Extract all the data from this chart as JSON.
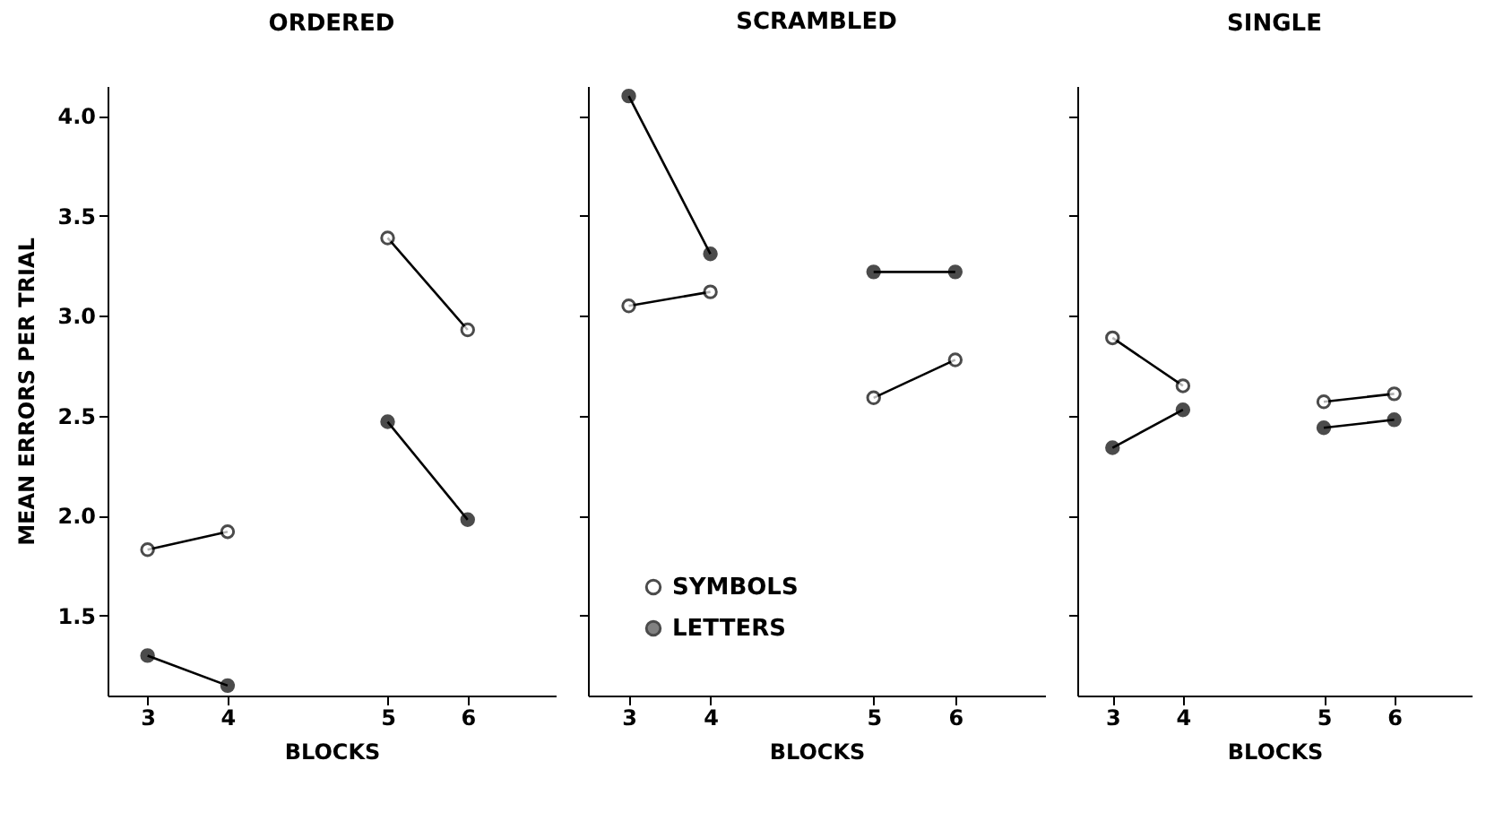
{
  "chart_data": [
    {
      "type": "line",
      "title": "ORDERED",
      "xlabel": "BLOCKS",
      "ylabel": "MEAN ERRORS PER TRIAL",
      "categories": [
        "3",
        "4",
        null,
        "5",
        "6"
      ],
      "ylim": [
        1.1,
        4.15
      ],
      "yticks": [
        1.5,
        {
          "value": 2,
          "label": "2.0"
        },
        2.5,
        {
          "value": 3,
          "label": "3.0"
        },
        3.5,
        {
          "value": 4,
          "label": "4.0"
        }
      ],
      "marker": "circle",
      "grid": false,
      "series": [
        {
          "color": "#000000",
          "values": [
            1.83,
            1.92,
            null,
            3.39,
            2.93
          ]
        },
        {
          "color": "#000000",
          "values": [
            1.3,
            1.15,
            null,
            2.47,
            1.98
          ]
        }
      ]
    },
    {
      "type": "line",
      "title": "SCRAMBLED",
      "xlabel": "BLOCKS",
      "categories": [
        "3",
        "4",
        null,
        "5",
        "6"
      ],
      "ylim": [
        1.1,
        4.15
      ],
      "yticks": [
        1.5,
        2,
        2.5,
        3,
        3.5,
        4
      ],
      "tick_labels": "x",
      "marker": "circle",
      "grid": false,
      "legend": "bottom left",
      "series": [
        {
          "name": "SYMBOLS",
          "color": "#000000",
          "values": [
            3.05,
            3.12,
            null,
            2.59,
            2.78
          ]
        },
        {
          "name": "LETTERS",
          "color": "#000000",
          "values": [
            4.1,
            3.31,
            null,
            3.22,
            3.22
          ]
        }
      ]
    },
    {
      "type": "line",
      "title": "SINGLE",
      "xlabel": "BLOCKS",
      "categories": [
        "3",
        "4",
        null,
        "5",
        "6"
      ],
      "ylim": [
        1.1,
        4.15
      ],
      "yticks": [
        1.5,
        2,
        2.5,
        3,
        3.5,
        4
      ],
      "tick_labels": "x",
      "marker": "circle",
      "grid": false,
      "series": [
        {
          "color": "#000000",
          "values": [
            2.89,
            2.65,
            null,
            2.57,
            2.61
          ]
        },
        {
          "color": "#000000",
          "values": [
            2.34,
            2.53,
            null,
            2.44,
            2.48
          ]
        }
      ]
    }
  ]
}
